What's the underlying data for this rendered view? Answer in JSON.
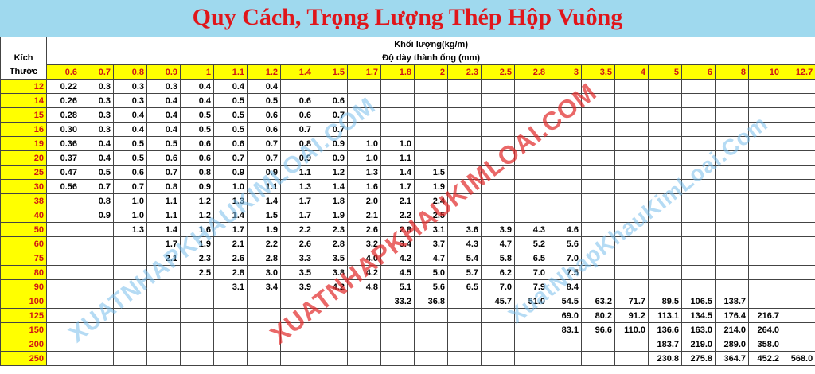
{
  "title": "Quy Cách, Trọng Lượng Thép Hộp Vuông",
  "table": {
    "group_header": "Khối lượng(kg/m)",
    "sub_header": "Độ dày thành ống (mm)",
    "row_header": [
      "Kích",
      "Thước"
    ],
    "columns": [
      "0.6",
      "0.7",
      "0.8",
      "0.9",
      "1",
      "1.1",
      "1.2",
      "1.4",
      "1.5",
      "1.7",
      "1.8",
      "2",
      "2.3",
      "2.5",
      "2.8",
      "3",
      "3.5",
      "4",
      "5",
      "6",
      "8",
      "10",
      "12.7"
    ],
    "rows": [
      {
        "size": "12",
        "values": [
          "0.22",
          "0.3",
          "0.3",
          "0.3",
          "0.4",
          "0.4",
          "0.4",
          null,
          null,
          null,
          null,
          null,
          null,
          null,
          null,
          null,
          null,
          null,
          null,
          null,
          null,
          null,
          null
        ]
      },
      {
        "size": "14",
        "values": [
          "0.26",
          "0.3",
          "0.3",
          "0.4",
          "0.4",
          "0.5",
          "0.5",
          "0.6",
          "0.6",
          null,
          null,
          null,
          null,
          null,
          null,
          null,
          null,
          null,
          null,
          null,
          null,
          null,
          null
        ]
      },
      {
        "size": "15",
        "values": [
          "0.28",
          "0.3",
          "0.4",
          "0.4",
          "0.5",
          "0.5",
          "0.6",
          "0.6",
          "0.7",
          null,
          null,
          null,
          null,
          null,
          null,
          null,
          null,
          null,
          null,
          null,
          null,
          null,
          null
        ]
      },
      {
        "size": "16",
        "values": [
          "0.30",
          "0.3",
          "0.4",
          "0.4",
          "0.5",
          "0.5",
          "0.6",
          "0.7",
          "0.7",
          null,
          null,
          null,
          null,
          null,
          null,
          null,
          null,
          null,
          null,
          null,
          null,
          null,
          null
        ]
      },
      {
        "size": "19",
        "values": [
          "0.36",
          "0.4",
          "0.5",
          "0.5",
          "0.6",
          "0.6",
          "0.7",
          "0.8",
          "0.9",
          "1.0",
          "1.0",
          null,
          null,
          null,
          null,
          null,
          null,
          null,
          null,
          null,
          null,
          null,
          null
        ]
      },
      {
        "size": "20",
        "values": [
          "0.37",
          "0.4",
          "0.5",
          "0.6",
          "0.6",
          "0.7",
          "0.7",
          "0.9",
          "0.9",
          "1.0",
          "1.1",
          null,
          null,
          null,
          null,
          null,
          null,
          null,
          null,
          null,
          null,
          null,
          null
        ]
      },
      {
        "size": "25",
        "values": [
          "0.47",
          "0.5",
          "0.6",
          "0.7",
          "0.8",
          "0.9",
          "0.9",
          "1.1",
          "1.2",
          "1.3",
          "1.4",
          "1.5",
          null,
          null,
          null,
          null,
          null,
          null,
          null,
          null,
          null,
          null,
          null
        ]
      },
      {
        "size": "30",
        "values": [
          "0.56",
          "0.7",
          "0.7",
          "0.8",
          "0.9",
          "1.0",
          "1.1",
          "1.3",
          "1.4",
          "1.6",
          "1.7",
          "1.9",
          null,
          null,
          null,
          null,
          null,
          null,
          null,
          null,
          null,
          null,
          null
        ]
      },
      {
        "size": "38",
        "values": [
          null,
          "0.8",
          "1.0",
          "1.1",
          "1.2",
          "1.3",
          "1.4",
          "1.7",
          "1.8",
          "2.0",
          "2.1",
          "2.4",
          null,
          null,
          null,
          null,
          null,
          null,
          null,
          null,
          null,
          null,
          null
        ]
      },
      {
        "size": "40",
        "values": [
          null,
          "0.9",
          "1.0",
          "1.1",
          "1.2",
          "1.4",
          "1.5",
          "1.7",
          "1.9",
          "2.1",
          "2.2",
          "2.5",
          null,
          null,
          null,
          null,
          null,
          null,
          null,
          null,
          null,
          null,
          null
        ]
      },
      {
        "size": "50",
        "values": [
          null,
          null,
          "1.3",
          "1.4",
          "1.6",
          "1.7",
          "1.9",
          "2.2",
          "2.3",
          "2.6",
          "2.8",
          "3.1",
          "3.6",
          "3.9",
          "4.3",
          "4.6",
          null,
          null,
          null,
          null,
          null,
          null,
          null
        ]
      },
      {
        "size": "60",
        "values": [
          null,
          null,
          null,
          "1.7",
          "1.9",
          "2.1",
          "2.2",
          "2.6",
          "2.8",
          "3.2",
          "3.4",
          "3.7",
          "4.3",
          "4.7",
          "5.2",
          "5.6",
          null,
          null,
          null,
          null,
          null,
          null,
          null
        ]
      },
      {
        "size": "75",
        "values": [
          null,
          null,
          null,
          "2.1",
          "2.3",
          "2.6",
          "2.8",
          "3.3",
          "3.5",
          "4.0",
          "4.2",
          "4.7",
          "5.4",
          "5.8",
          "6.5",
          "7.0",
          null,
          null,
          null,
          null,
          null,
          null,
          null
        ]
      },
      {
        "size": "80",
        "values": [
          null,
          null,
          null,
          null,
          "2.5",
          "2.8",
          "3.0",
          "3.5",
          "3.8",
          "4.2",
          "4.5",
          "5.0",
          "5.7",
          "6.2",
          "7.0",
          "7.5",
          null,
          null,
          null,
          null,
          null,
          null,
          null
        ]
      },
      {
        "size": "90",
        "values": [
          null,
          null,
          null,
          null,
          null,
          "3.1",
          "3.4",
          "3.9",
          "4.2",
          "4.8",
          "5.1",
          "5.6",
          "6.5",
          "7.0",
          "7.9",
          "8.4",
          null,
          null,
          null,
          null,
          null,
          null,
          null
        ]
      },
      {
        "size": "100",
        "values": [
          null,
          null,
          null,
          null,
          null,
          null,
          null,
          null,
          null,
          null,
          "33.2",
          "36.8",
          null,
          "45.7",
          "51.0",
          "54.5",
          "63.2",
          "71.7",
          "89.5",
          "106.5",
          "138.7",
          null,
          null
        ]
      },
      {
        "size": "125",
        "values": [
          null,
          null,
          null,
          null,
          null,
          null,
          null,
          null,
          null,
          null,
          null,
          null,
          null,
          null,
          null,
          "69.0",
          "80.2",
          "91.2",
          "113.1",
          "134.5",
          "176.4",
          "216.7",
          null
        ]
      },
      {
        "size": "150",
        "values": [
          null,
          null,
          null,
          null,
          null,
          null,
          null,
          null,
          null,
          null,
          null,
          null,
          null,
          null,
          null,
          "83.1",
          "96.6",
          "110.0",
          "136.6",
          "163.0",
          "214.0",
          "264.0",
          null
        ]
      },
      {
        "size": "200",
        "values": [
          null,
          null,
          null,
          null,
          null,
          null,
          null,
          null,
          null,
          null,
          null,
          null,
          null,
          null,
          null,
          null,
          null,
          null,
          "183.7",
          "219.0",
          "289.0",
          "358.0",
          null
        ]
      },
      {
        "size": "250",
        "values": [
          null,
          null,
          null,
          null,
          null,
          null,
          null,
          null,
          null,
          null,
          null,
          null,
          null,
          null,
          null,
          null,
          null,
          null,
          "230.8",
          "275.8",
          "364.7",
          "452.2",
          "568.0"
        ]
      }
    ]
  },
  "watermarks": [
    "XUATNHAPKHAUKIMLOAI.COM",
    "XUATNHAPKHAUKIMLOAI.COM",
    "XuatNhapKhauKimLoai.Com"
  ]
}
